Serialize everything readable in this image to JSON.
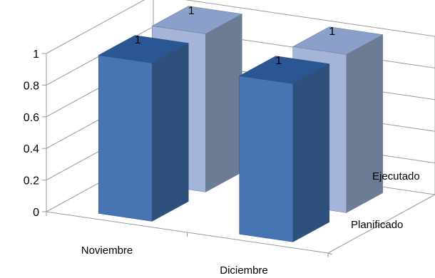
{
  "chart_data": {
    "type": "bar",
    "title": "",
    "categories": [
      "Noviembre",
      "Diciembre"
    ],
    "series": [
      {
        "name": "Planificado",
        "values": [
          1,
          1
        ]
      },
      {
        "name": "Ejecutado",
        "values": [
          1,
          1
        ]
      }
    ],
    "ylim": [
      0,
      1
    ],
    "yticks": [
      "0",
      "0.2",
      "0.4",
      "0.6",
      "0.8",
      "1"
    ],
    "data_labels": [
      "1",
      "1",
      "1",
      "1"
    ],
    "grid": true,
    "legend": "none",
    "style": "3d-column",
    "colors": {
      "Planificado": {
        "front": "#4775b4",
        "side": "#2f4f7c",
        "top": "#2a5793"
      },
      "Ejecutado": {
        "front": "#a5b5d9",
        "side": "#6b7c94",
        "top": "#8a9fc9"
      }
    }
  }
}
